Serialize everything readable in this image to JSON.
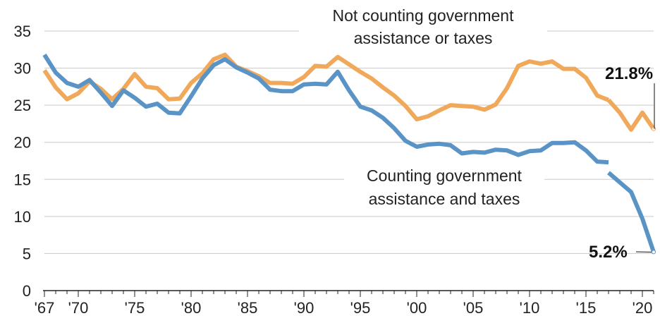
{
  "chart_data": {
    "type": "line",
    "title": "",
    "xlabel": "",
    "ylabel": "",
    "xlim": [
      1967,
      2021
    ],
    "ylim": [
      0,
      35
    ],
    "y_ticks": [
      0,
      5,
      10,
      15,
      20,
      25,
      30,
      35
    ],
    "x_tick_labels": [
      {
        "x": 1967,
        "label": "'67"
      },
      {
        "x": 1970,
        "label": "'70"
      },
      {
        "x": 1975,
        "label": "'75"
      },
      {
        "x": 1980,
        "label": "'80"
      },
      {
        "x": 1985,
        "label": "'85"
      },
      {
        "x": 1990,
        "label": "'90"
      },
      {
        "x": 1995,
        "label": "'95"
      },
      {
        "x": 2000,
        "label": "'00"
      },
      {
        "x": 2005,
        "label": "'05"
      },
      {
        "x": 2010,
        "label": "'10"
      },
      {
        "x": 2015,
        "label": "'15"
      },
      {
        "x": 2020,
        "label": "'20"
      }
    ],
    "grid": "horizontal",
    "legend": "none",
    "series": [
      {
        "color": "#f0a85a",
        "annotation": [
          "Not counting government",
          "assistance or taxes"
        ],
        "end_label": "21.8%",
        "segments": [
          [
            [
              1967,
              29.7
            ],
            [
              1968,
              27.4
            ],
            [
              1969,
              25.8
            ],
            [
              1970,
              26.6
            ],
            [
              1971,
              28.2
            ],
            [
              1972,
              27.2
            ],
            [
              1973,
              25.8
            ],
            [
              1974,
              27.2
            ],
            [
              1975,
              29.2
            ],
            [
              1976,
              27.5
            ],
            [
              1977,
              27.3
            ],
            [
              1978,
              25.8
            ],
            [
              1979,
              25.9
            ],
            [
              1980,
              28.0
            ],
            [
              1981,
              29.3
            ],
            [
              1982,
              31.2
            ],
            [
              1983,
              31.8
            ],
            [
              1984,
              30.2
            ],
            [
              1985,
              29.6
            ],
            [
              1986,
              28.9
            ],
            [
              1987,
              28.0
            ],
            [
              1988,
              28.0
            ],
            [
              1989,
              27.9
            ],
            [
              1990,
              28.8
            ],
            [
              1991,
              30.3
            ],
            [
              1992,
              30.2
            ],
            [
              1993,
              31.5
            ],
            [
              1994,
              30.5
            ],
            [
              1995,
              29.5
            ],
            [
              1996,
              28.6
            ],
            [
              1997,
              27.4
            ],
            [
              1998,
              26.3
            ],
            [
              1999,
              24.9
            ],
            [
              2000,
              23.1
            ],
            [
              2001,
              23.5
            ],
            [
              2002,
              24.3
            ],
            [
              2003,
              25.0
            ],
            [
              2004,
              24.9
            ],
            [
              2005,
              24.8
            ],
            [
              2006,
              24.4
            ],
            [
              2007,
              25.1
            ],
            [
              2008,
              27.3
            ],
            [
              2009,
              30.3
            ],
            [
              2010,
              30.9
            ],
            [
              2011,
              30.6
            ],
            [
              2012,
              30.9
            ],
            [
              2013,
              29.9
            ],
            [
              2014,
              29.9
            ],
            [
              2015,
              28.7
            ],
            [
              2016,
              26.3
            ],
            [
              2017,
              25.7
            ]
          ],
          [
            [
              2017,
              25.7
            ],
            [
              2018,
              24.0
            ],
            [
              2019,
              21.7
            ],
            [
              2020,
              24.0
            ],
            [
              2021,
              21.8
            ]
          ]
        ]
      },
      {
        "color": "#5a93c6",
        "annotation": [
          "Counting government",
          "assistance and taxes"
        ],
        "end_label": "5.2%",
        "segments": [
          [
            [
              1967,
              31.8
            ],
            [
              1968,
              29.4
            ],
            [
              1969,
              28.0
            ],
            [
              1970,
              27.5
            ],
            [
              1971,
              28.4
            ],
            [
              1972,
              26.7
            ],
            [
              1973,
              24.9
            ],
            [
              1974,
              27.0
            ],
            [
              1975,
              26.0
            ],
            [
              1976,
              24.8
            ],
            [
              1977,
              25.2
            ],
            [
              1978,
              24.0
            ],
            [
              1979,
              23.9
            ],
            [
              1980,
              26.2
            ],
            [
              1981,
              28.6
            ],
            [
              1982,
              30.4
            ],
            [
              1983,
              31.2
            ],
            [
              1984,
              30.1
            ],
            [
              1985,
              29.4
            ],
            [
              1986,
              28.6
            ],
            [
              1987,
              27.1
            ],
            [
              1988,
              26.9
            ],
            [
              1989,
              26.9
            ],
            [
              1990,
              27.8
            ],
            [
              1991,
              27.9
            ],
            [
              1992,
              27.8
            ],
            [
              1993,
              29.5
            ],
            [
              1994,
              27.0
            ],
            [
              1995,
              24.8
            ],
            [
              1996,
              24.3
            ],
            [
              1997,
              23.3
            ],
            [
              1998,
              21.9
            ],
            [
              1999,
              20.2
            ],
            [
              2000,
              19.4
            ],
            [
              2001,
              19.7
            ],
            [
              2002,
              19.8
            ],
            [
              2003,
              19.6
            ],
            [
              2004,
              18.5
            ],
            [
              2005,
              18.7
            ],
            [
              2006,
              18.6
            ],
            [
              2007,
              19.0
            ],
            [
              2008,
              18.9
            ],
            [
              2009,
              18.3
            ],
            [
              2010,
              18.8
            ],
            [
              2011,
              18.9
            ],
            [
              2012,
              19.9
            ],
            [
              2013,
              19.9
            ],
            [
              2014,
              20.0
            ],
            [
              2015,
              18.9
            ],
            [
              2016,
              17.4
            ],
            [
              2017,
              17.3
            ]
          ],
          [
            [
              2017,
              15.9
            ],
            [
              2018,
              14.6
            ],
            [
              2019,
              13.3
            ],
            [
              2020,
              9.7
            ],
            [
              2021,
              5.2
            ]
          ]
        ]
      }
    ]
  }
}
